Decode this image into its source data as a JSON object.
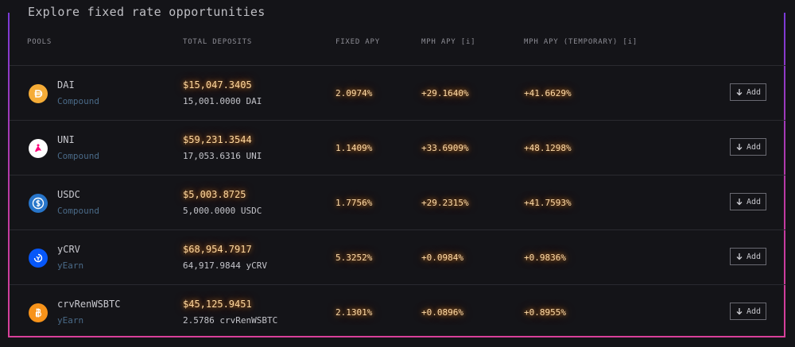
{
  "title": "Explore fixed rate opportunities",
  "headers": {
    "pools": "POOLS",
    "total_deposits": "TOTAL DEPOSITS",
    "fixed_apy": "FIXED APY",
    "mph_apy": "MPH APY [i]",
    "mph_apy_temp": "MPH APY (TEMPORARY) [i]"
  },
  "add_label": "Add",
  "rows": [
    {
      "name": "DAI",
      "source": "Compound",
      "deposit_usd": "$15,047.3405",
      "deposit_token": "15,001.0000 DAI",
      "fixed_apy": "2.0974%",
      "mph_apy": "+29.1640%",
      "mph_apy_temp": "+41.6629%",
      "icon": "dai-icon",
      "color": "#f5ac37"
    },
    {
      "name": "UNI",
      "source": "Compound",
      "deposit_usd": "$59,231.3544",
      "deposit_token": "17,053.6316 UNI",
      "fixed_apy": "1.1409%",
      "mph_apy": "+33.6909%",
      "mph_apy_temp": "+48.1298%",
      "icon": "uni-icon",
      "color": "#ffffff"
    },
    {
      "name": "USDC",
      "source": "Compound",
      "deposit_usd": "$5,003.8725",
      "deposit_token": "5,000.0000 USDC",
      "fixed_apy": "1.7756%",
      "mph_apy": "+29.2315%",
      "mph_apy_temp": "+41.7593%",
      "icon": "usdc-icon",
      "color": "#2775ca"
    },
    {
      "name": "yCRV",
      "source": "yEarn",
      "deposit_usd": "$68,954.7917",
      "deposit_token": "64,917.9844 yCRV",
      "fixed_apy": "5.3252%",
      "mph_apy": "+0.0984%",
      "mph_apy_temp": "+0.9836%",
      "icon": "yearn-icon",
      "color": "#0657f9"
    },
    {
      "name": "crvRenWSBTC",
      "source": "yEarn",
      "deposit_usd": "$45,125.9451",
      "deposit_token": "2.5786 crvRenWSBTC",
      "fixed_apy": "2.1301%",
      "mph_apy": "+0.0896%",
      "mph_apy_temp": "+0.8955%",
      "icon": "bitcoin-icon",
      "color": "#f7931a"
    }
  ]
}
